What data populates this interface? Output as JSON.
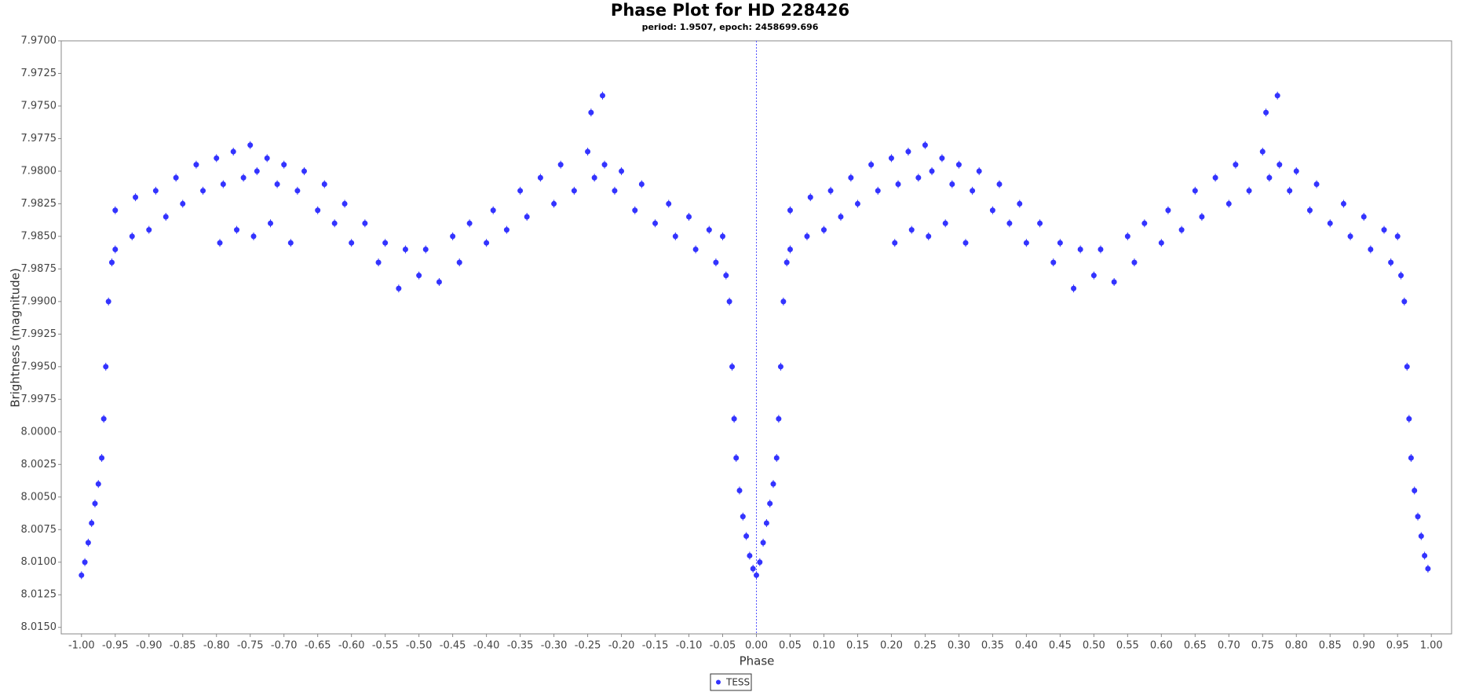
{
  "chart_data": {
    "type": "scatter",
    "title": "Phase Plot for HD 228426",
    "subtitle": "period: 1.9507, epoch: 2458699.696",
    "x_label": "Phase",
    "y_label": "Brightness (magnitude)",
    "xlim": [
      -1.03,
      1.03
    ],
    "ylim": [
      7.97,
      8.0155
    ],
    "y_inverted": true,
    "vline": 0,
    "legend": "bottom",
    "xticks": [
      {
        "value": -1,
        "label": "-1.00"
      },
      {
        "value": -0.95,
        "label": "-0.95"
      },
      {
        "value": -0.9,
        "label": "-0.90"
      },
      {
        "value": -0.85,
        "label": "-0.85"
      },
      {
        "value": -0.8,
        "label": "-0.80"
      },
      {
        "value": -0.75,
        "label": "-0.75"
      },
      {
        "value": -0.7,
        "label": "-0.70"
      },
      {
        "value": -0.65,
        "label": "-0.65"
      },
      {
        "value": -0.6,
        "label": "-0.60"
      },
      {
        "value": -0.55,
        "label": "-0.55"
      },
      {
        "value": -0.5,
        "label": "-0.50"
      },
      {
        "value": -0.45,
        "label": "-0.45"
      },
      {
        "value": -0.4,
        "label": "-0.40"
      },
      {
        "value": -0.35,
        "label": "-0.35"
      },
      {
        "value": -0.3,
        "label": "-0.30"
      },
      {
        "value": -0.25,
        "label": "-0.25"
      },
      {
        "value": -0.2,
        "label": "-0.20"
      },
      {
        "value": -0.15,
        "label": "-0.15"
      },
      {
        "value": -0.1,
        "label": "-0.10"
      },
      {
        "value": -0.05,
        "label": "-0.05"
      },
      {
        "value": 0,
        "label": "0.00"
      },
      {
        "value": 0.05,
        "label": "0.05"
      },
      {
        "value": 0.1,
        "label": "0.10"
      },
      {
        "value": 0.15,
        "label": "0.15"
      },
      {
        "value": 0.2,
        "label": "0.20"
      },
      {
        "value": 0.25,
        "label": "0.25"
      },
      {
        "value": 0.3,
        "label": "0.30"
      },
      {
        "value": 0.35,
        "label": "0.35"
      },
      {
        "value": 0.4,
        "label": "0.40"
      },
      {
        "value": 0.45,
        "label": "0.45"
      },
      {
        "value": 0.5,
        "label": "0.50"
      },
      {
        "value": 0.55,
        "label": "0.55"
      },
      {
        "value": 0.6,
        "label": "0.60"
      },
      {
        "value": 0.65,
        "label": "0.65"
      },
      {
        "value": 0.7,
        "label": "0.70"
      },
      {
        "value": 0.75,
        "label": "0.75"
      },
      {
        "value": 0.8,
        "label": "0.80"
      },
      {
        "value": 0.85,
        "label": "0.85"
      },
      {
        "value": 0.9,
        "label": "0.90"
      },
      {
        "value": 0.95,
        "label": "0.95"
      },
      {
        "value": 1,
        "label": "1.00"
      }
    ],
    "yticks": [
      {
        "value": 7.97,
        "label": "7.9700"
      },
      {
        "value": 7.9725,
        "label": "7.9725"
      },
      {
        "value": 7.975,
        "label": "7.9750"
      },
      {
        "value": 7.9775,
        "label": "7.9775"
      },
      {
        "value": 7.98,
        "label": "7.9800"
      },
      {
        "value": 7.9825,
        "label": "7.9825"
      },
      {
        "value": 7.985,
        "label": "7.9850"
      },
      {
        "value": 7.9875,
        "label": "7.9875"
      },
      {
        "value": 7.99,
        "label": "7.9900"
      },
      {
        "value": 7.9925,
        "label": "7.9925"
      },
      {
        "value": 7.995,
        "label": "7.9950"
      },
      {
        "value": 7.9975,
        "label": "7.9975"
      },
      {
        "value": 8,
        "label": "8.0000"
      },
      {
        "value": 8.0025,
        "label": "8.0025"
      },
      {
        "value": 8.005,
        "label": "8.0050"
      },
      {
        "value": 8.0075,
        "label": "8.0075"
      },
      {
        "value": 8.01,
        "label": "8.0100"
      },
      {
        "value": 8.0125,
        "label": "8.0125"
      },
      {
        "value": 8.015,
        "label": "8.0150"
      }
    ],
    "series": [
      {
        "name": "TESS",
        "color": "#3333ff",
        "x": [
          -1.0,
          -0.995,
          -0.99,
          -0.985,
          -0.98,
          -0.975,
          -0.97,
          -0.967,
          -0.964,
          -0.96,
          -0.955,
          -0.95,
          -0.95,
          -0.925,
          -0.92,
          -0.9,
          -0.89,
          -0.875,
          -0.86,
          -0.85,
          -0.83,
          -0.82,
          -0.8,
          -0.79,
          -0.775,
          -0.76,
          -0.75,
          -0.74,
          -0.725,
          -0.71,
          -0.7,
          -0.68,
          -0.67,
          -0.65,
          -0.64,
          -0.625,
          -0.61,
          -0.6,
          -0.58,
          -0.56,
          -0.55,
          -0.53,
          -0.52,
          -0.5,
          -0.49,
          -0.47,
          -0.45,
          -0.44,
          -0.425,
          -0.4,
          -0.39,
          -0.37,
          -0.35,
          -0.34,
          -0.32,
          -0.3,
          -0.29,
          -0.27,
          -0.25,
          -0.24,
          -0.225,
          -0.21,
          -0.2,
          -0.18,
          -0.17,
          -0.15,
          -0.13,
          -0.12,
          -0.1,
          -0.09,
          -0.07,
          -0.06,
          -0.05,
          -0.045,
          -0.04,
          -0.036,
          -0.033,
          -0.03,
          -0.025,
          -0.02,
          -0.015,
          -0.01,
          -0.005,
          -0.795,
          -0.77,
          -0.745,
          -0.72,
          -0.69,
          -0.245,
          -0.228,
          0.0,
          0.005,
          0.01,
          0.015,
          0.02,
          0.025,
          0.03,
          0.033,
          0.036,
          0.04,
          0.045,
          0.05,
          0.05,
          0.075,
          0.08,
          0.1,
          0.11,
          0.125,
          0.14,
          0.15,
          0.17,
          0.18,
          0.2,
          0.21,
          0.225,
          0.24,
          0.25,
          0.26,
          0.275,
          0.29,
          0.3,
          0.32,
          0.33,
          0.35,
          0.36,
          0.375,
          0.39,
          0.4,
          0.42,
          0.44,
          0.45,
          0.47,
          0.48,
          0.5,
          0.51,
          0.53,
          0.55,
          0.56,
          0.575,
          0.6,
          0.61,
          0.63,
          0.65,
          0.66,
          0.68,
          0.7,
          0.71,
          0.73,
          0.75,
          0.76,
          0.775,
          0.79,
          0.8,
          0.82,
          0.83,
          0.85,
          0.87,
          0.88,
          0.9,
          0.91,
          0.93,
          0.94,
          0.95,
          0.955,
          0.96,
          0.964,
          0.967,
          0.97,
          0.975,
          0.98,
          0.985,
          0.99,
          0.995,
          0.205,
          0.23,
          0.255,
          0.28,
          0.31,
          0.755,
          0.772
        ],
        "values": [
          8.011,
          8.01,
          8.0085,
          8.007,
          8.0055,
          8.004,
          8.002,
          7.999,
          7.995,
          7.99,
          7.987,
          7.986,
          7.983,
          7.985,
          7.982,
          7.9845,
          7.9815,
          7.9835,
          7.9805,
          7.9825,
          7.9795,
          7.9815,
          7.979,
          7.981,
          7.9785,
          7.9805,
          7.978,
          7.98,
          7.979,
          7.981,
          7.9795,
          7.9815,
          7.98,
          7.983,
          7.981,
          7.984,
          7.9825,
          7.9855,
          7.984,
          7.987,
          7.9855,
          7.989,
          7.986,
          7.988,
          7.986,
          7.9885,
          7.985,
          7.987,
          7.984,
          7.9855,
          7.983,
          7.9845,
          7.9815,
          7.9835,
          7.9805,
          7.9825,
          7.9795,
          7.9815,
          7.9785,
          7.9805,
          7.9795,
          7.9815,
          7.98,
          7.983,
          7.981,
          7.984,
          7.9825,
          7.985,
          7.9835,
          7.986,
          7.9845,
          7.987,
          7.985,
          7.988,
          7.99,
          7.995,
          7.999,
          8.002,
          8.0045,
          8.0065,
          8.008,
          8.0095,
          8.0105,
          7.9855,
          7.9845,
          7.985,
          7.984,
          7.9855,
          7.9755,
          7.9742,
          8.011,
          8.01,
          8.0085,
          8.007,
          8.0055,
          8.004,
          8.002,
          7.999,
          7.995,
          7.99,
          7.987,
          7.986,
          7.983,
          7.985,
          7.982,
          7.9845,
          7.9815,
          7.9835,
          7.9805,
          7.9825,
          7.9795,
          7.9815,
          7.979,
          7.981,
          7.9785,
          7.9805,
          7.978,
          7.98,
          7.979,
          7.981,
          7.9795,
          7.9815,
          7.98,
          7.983,
          7.981,
          7.984,
          7.9825,
          7.9855,
          7.984,
          7.987,
          7.9855,
          7.989,
          7.986,
          7.988,
          7.986,
          7.9885,
          7.985,
          7.987,
          7.984,
          7.9855,
          7.983,
          7.9845,
          7.9815,
          7.9835,
          7.9805,
          7.9825,
          7.9795,
          7.9815,
          7.9785,
          7.9805,
          7.9795,
          7.9815,
          7.98,
          7.983,
          7.981,
          7.984,
          7.9825,
          7.985,
          7.9835,
          7.986,
          7.9845,
          7.987,
          7.985,
          7.988,
          7.99,
          7.995,
          7.999,
          8.002,
          8.0045,
          8.0065,
          8.008,
          8.0095,
          8.0105,
          7.9855,
          7.9845,
          7.985,
          7.984,
          7.9855,
          7.9755,
          7.9742
        ]
      }
    ]
  }
}
